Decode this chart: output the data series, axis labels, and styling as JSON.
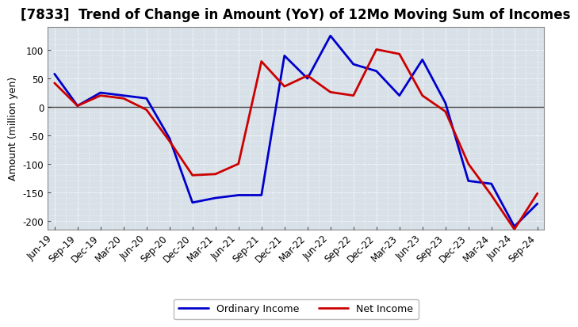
{
  "title": "[7833]  Trend of Change in Amount (YoY) of 12Mo Moving Sum of Incomes",
  "ylabel": "Amount (million yen)",
  "background_color": "#ffffff",
  "plot_bg_color": "#d8e0e8",
  "grid_color": "#ffffff",
  "x_labels": [
    "Jun-19",
    "Sep-19",
    "Dec-19",
    "Mar-20",
    "Jun-20",
    "Sep-20",
    "Dec-20",
    "Mar-21",
    "Jun-21",
    "Sep-21",
    "Dec-21",
    "Mar-22",
    "Jun-22",
    "Sep-22",
    "Dec-22",
    "Mar-23",
    "Jun-23",
    "Sep-23",
    "Dec-23",
    "Mar-24",
    "Jun-24",
    "Sep-24"
  ],
  "ordinary_income": [
    58,
    2,
    25,
    20,
    15,
    -55,
    -168,
    -160,
    -155,
    -155,
    90,
    50,
    125,
    75,
    63,
    20,
    83,
    7,
    -130,
    -135,
    -210,
    -170
  ],
  "net_income": [
    42,
    2,
    20,
    15,
    -5,
    -60,
    -120,
    -118,
    -100,
    80,
    36,
    55,
    26,
    20,
    101,
    93,
    20,
    -8,
    -100,
    -155,
    -215,
    -152
  ],
  "ylim": [
    -215,
    140
  ],
  "yticks": [
    -200,
    -150,
    -100,
    -50,
    0,
    50,
    100
  ],
  "ordinary_color": "#0000cc",
  "net_color": "#cc0000",
  "line_width": 2.0,
  "title_fontsize": 12,
  "axis_fontsize": 9,
  "tick_fontsize": 8.5
}
